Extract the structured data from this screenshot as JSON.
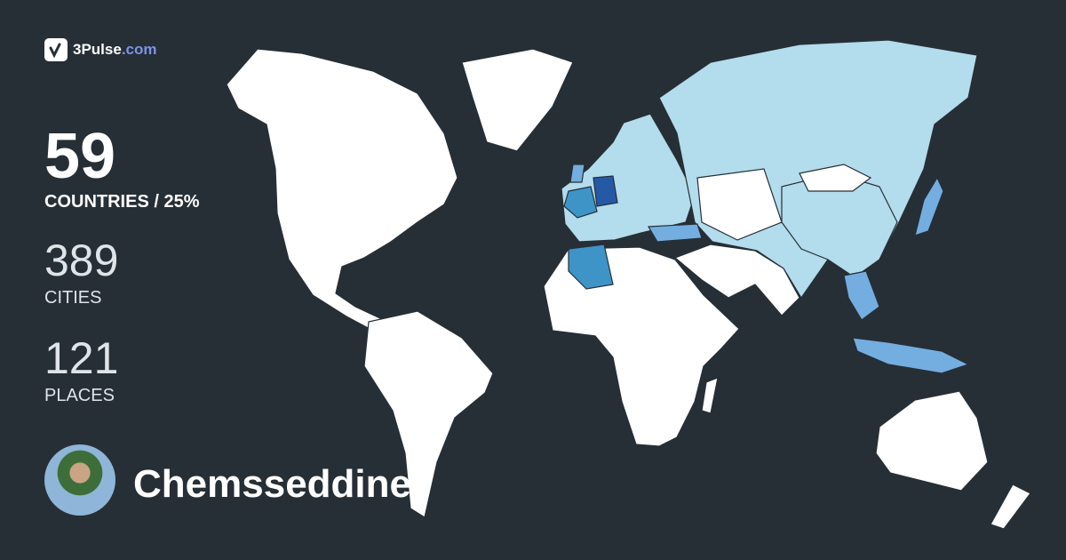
{
  "brand": {
    "name": "3Pulse",
    ".com": ".com",
    "domain": ".com"
  },
  "stats": {
    "countries_value": "59",
    "countries_label": "COUNTRIES / 25%",
    "cities_value": "389",
    "cities_label": "CITIES",
    "places_value": "121",
    "places_label": "PLACES"
  },
  "user": {
    "name": "Chemsseddine"
  },
  "colors": {
    "background": "#262f36",
    "unvisited": "#ffffff",
    "asia_visited": "#b3dcec",
    "medium": "#3e94c7",
    "dark": "#2559a6",
    "light": "#74aee0",
    "brand_accent": "#7d92e8"
  }
}
